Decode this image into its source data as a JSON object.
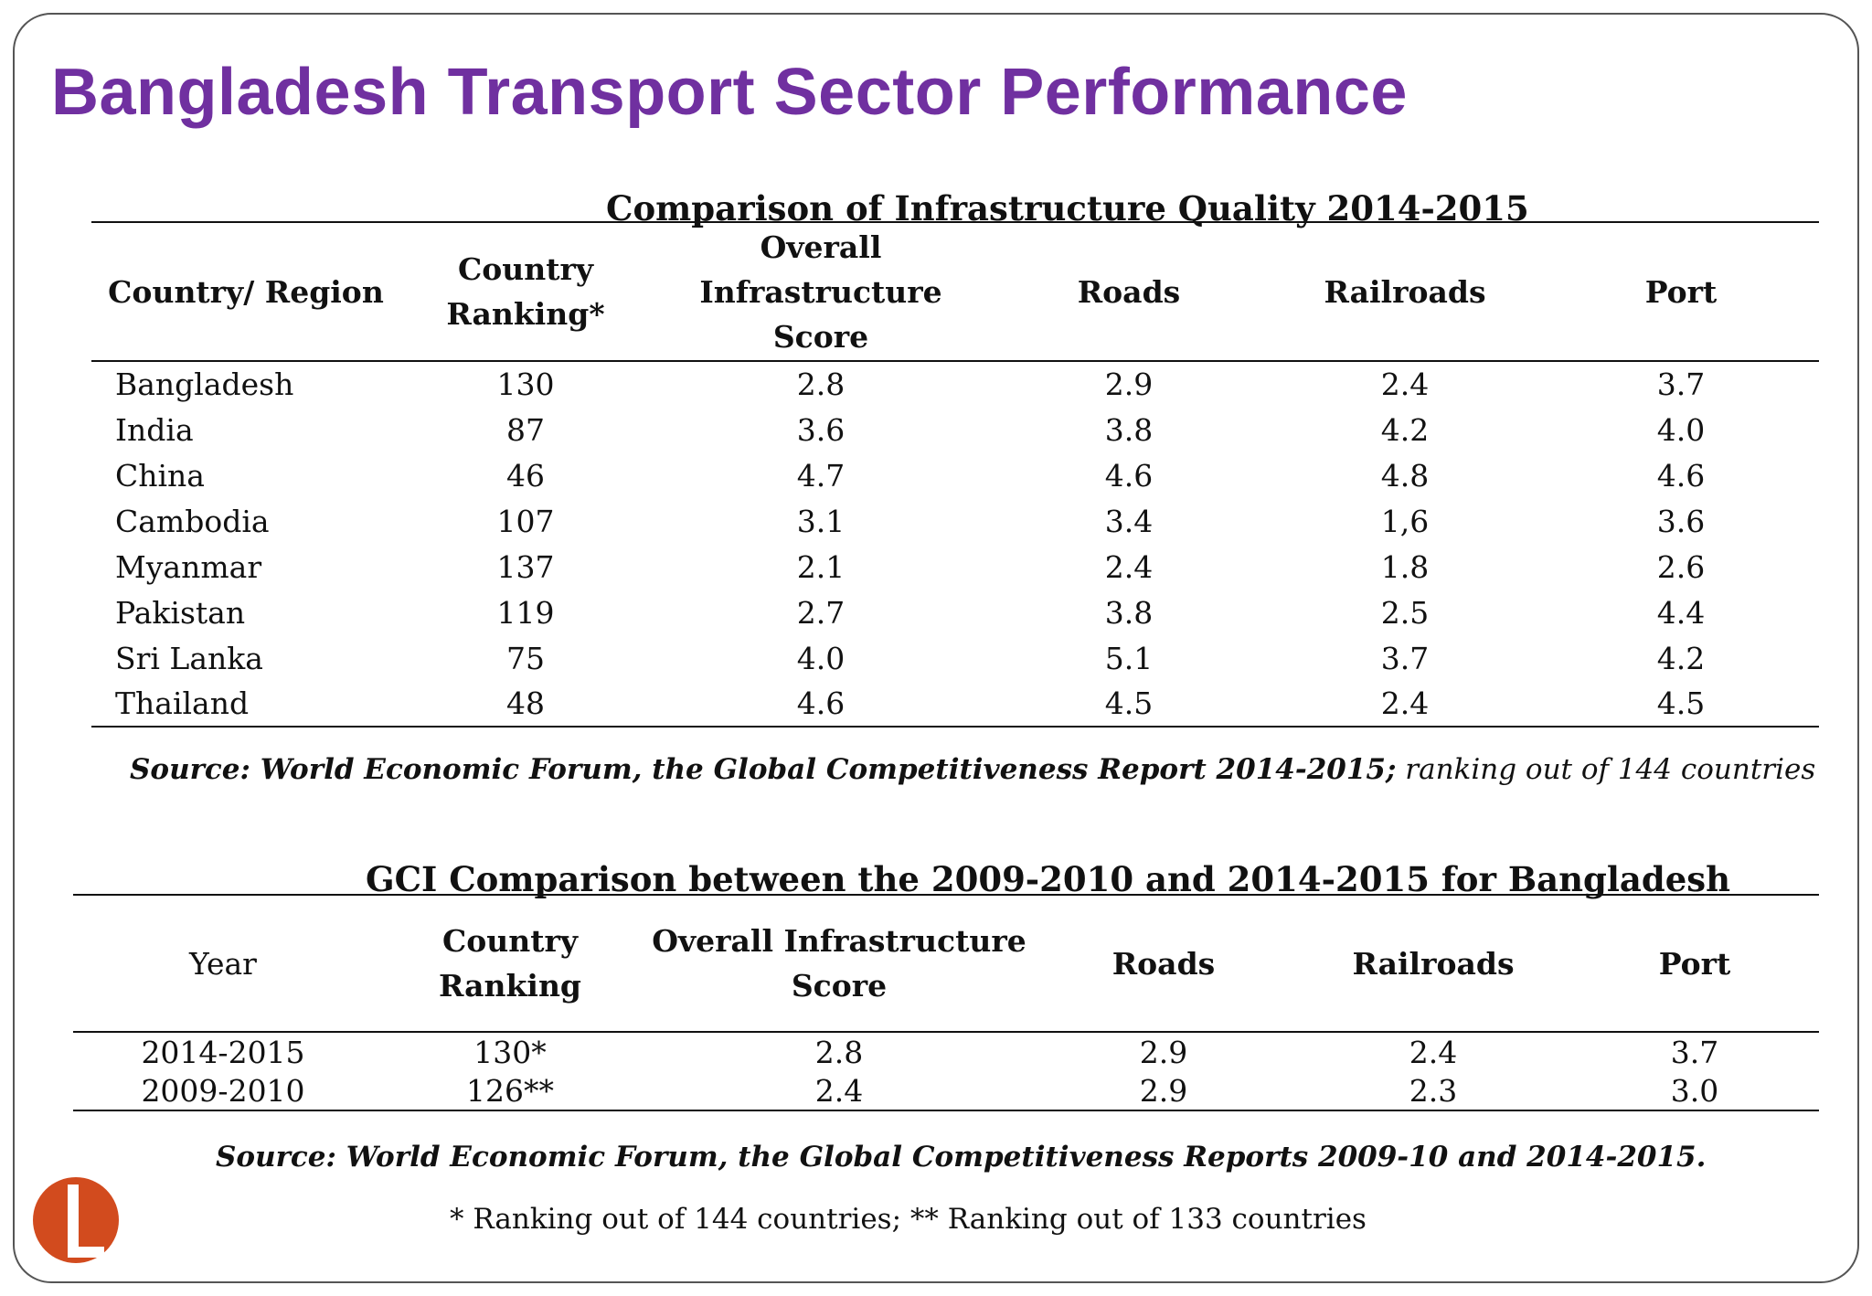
{
  "title": "Bangladesh Transport Sector Performance",
  "table1": {
    "caption": "Comparison of Infrastructure Quality 2014-2015",
    "headers": [
      "Country/ Region",
      "Country Ranking*",
      "Overall Infrastructure Score",
      "Roads",
      "Railroads",
      "Port"
    ],
    "rows": [
      [
        "Bangladesh",
        "130",
        "2.8",
        "2.9",
        "2.4",
        "3.7"
      ],
      [
        "India",
        "87",
        "3.6",
        "3.8",
        "4.2",
        "4.0"
      ],
      [
        "China",
        "46",
        "4.7",
        "4.6",
        "4.8",
        "4.6"
      ],
      [
        "Cambodia",
        "107",
        "3.1",
        "3.4",
        "1,6",
        "3.6"
      ],
      [
        "Myanmar",
        "137",
        "2.1",
        "2.4",
        "1.8",
        "2.6"
      ],
      [
        "Pakistan",
        "119",
        "2.7",
        "3.8",
        "2.5",
        "4.4"
      ],
      [
        "Sri Lanka",
        "75",
        "4.0",
        "5.1",
        "3.7",
        "4.2"
      ],
      [
        "Thailand",
        "48",
        "4.6",
        "4.5",
        "2.4",
        "4.5"
      ]
    ],
    "source": "Source: World Economic Forum, the Global Competitiveness Report 2014-2015;",
    "source_suffix": " ranking out of 144 countries"
  },
  "table2": {
    "caption": "GCI Comparison between the 2009-2010 and 2014-2015 for Bangladesh",
    "headers": [
      "Year",
      "Country Ranking",
      "Overall Infrastructure Score",
      "Roads",
      "Railroads",
      "Port"
    ],
    "rows": [
      [
        "2014-2015",
        "130*",
        "2.8",
        "2.9",
        "2.4",
        "3.7"
      ],
      [
        "2009-2010",
        "126**",
        "2.4",
        "2.9",
        "2.3",
        "3.0"
      ]
    ],
    "source": "Source:  World Economic Forum, the Global Competitiveness Reports 2009-10 and 2014-2015.",
    "footnote": "*    Ranking out of 144 countries; ** Ranking out of 133 countries"
  },
  "colors": {
    "title": "#7030a0",
    "accent": "#d24b1e"
  },
  "icons": {
    "slide_marker": "orange-circle-icon"
  }
}
